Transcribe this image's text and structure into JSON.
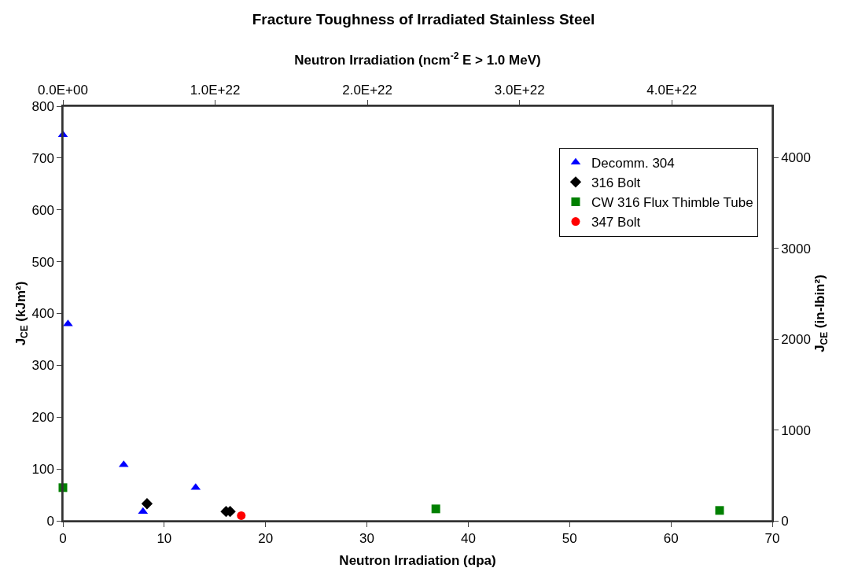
{
  "chart_data": {
    "type": "scatter",
    "title": "Fracture Toughness of Irradiated Stainless Steel",
    "xlabel": "Neutron Irradiation (dpa)",
    "ylabel": "J$_{CE}$ (kJm²)",
    "y2label": "J$_{CE}$ (in-lbin²)",
    "x2label": "Neutron Irradiation (ncm$^{-2}$ E > 1.0 MeV)",
    "xlim": [
      0,
      70
    ],
    "xticks": [
      0,
      10,
      20,
      30,
      40,
      50,
      60,
      70
    ],
    "ylim": [
      0,
      800
    ],
    "yticks": [
      0,
      100,
      200,
      300,
      400,
      500,
      600,
      700,
      800
    ],
    "y2lim": [
      0,
      4568
    ],
    "y2ticks": [
      0,
      1000,
      2000,
      3000,
      4000
    ],
    "x2lim": [
      0,
      4.66e+22
    ],
    "x2ticks": [
      {
        "value": 0,
        "label": "0.0E+00"
      },
      {
        "value": 1e+22,
        "label": "1.0E+22"
      },
      {
        "value": 2e+22,
        "label": "2.0E+22"
      },
      {
        "value": 3e+22,
        "label": "3.0E+22"
      },
      {
        "value": 4e+22,
        "label": "4.0E+22"
      }
    ],
    "grid": false,
    "legend": "top right",
    "series": [
      {
        "name": "Decomm. 304",
        "color": "#0000ff",
        "marker": "triangle",
        "x": [
          0,
          0.5,
          6.0,
          7.9,
          13.1
        ],
        "values": [
          745,
          380,
          108,
          18,
          64
        ]
      },
      {
        "name": "316 Bolt",
        "color": "#000000",
        "marker": "diamond",
        "x": [
          8.3,
          16.1,
          16.5
        ],
        "values": [
          33,
          18,
          18
        ]
      },
      {
        "name": "CW 316 Flux Thimble Tube",
        "color": "#008000",
        "marker": "square",
        "x": [
          0,
          36.8,
          64.8
        ],
        "values": [
          64,
          23,
          20
        ]
      },
      {
        "name": "347 Bolt",
        "color": "#ff0000",
        "marker": "circle",
        "x": [
          17.6
        ],
        "values": [
          10
        ]
      }
    ]
  }
}
